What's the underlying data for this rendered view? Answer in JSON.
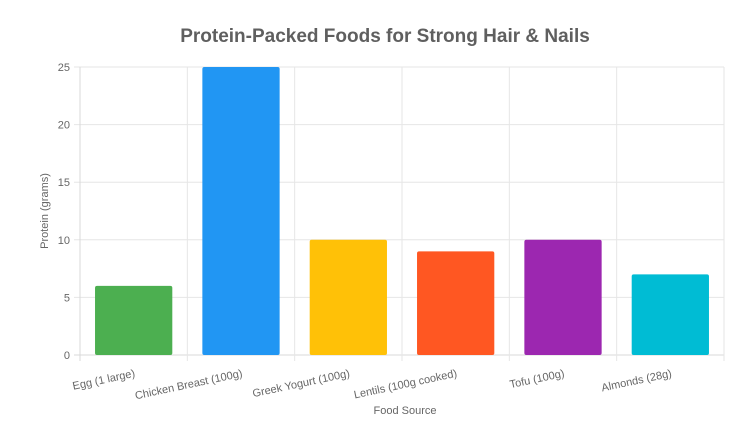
{
  "chart_data": {
    "type": "bar",
    "title": "Protein-Packed Foods for Strong Hair & Nails",
    "xlabel": "Food Source",
    "ylabel": "Protein (grams)",
    "ylim": [
      0,
      25
    ],
    "yticks": [
      0,
      5,
      10,
      15,
      20,
      25
    ],
    "grid": true,
    "legend": "none",
    "categories": [
      "Egg (1 large)",
      "Chicken Breast (100g)",
      "Greek Yogurt (100g)",
      "Lentils (100g cooked)",
      "Tofu (100g)",
      "Almonds (28g)"
    ],
    "values": [
      6,
      25,
      10,
      9,
      10,
      7
    ],
    "colors": [
      "#4caf50",
      "#2196f3",
      "#ffc107",
      "#ff5722",
      "#9c27b0",
      "#00bcd4"
    ]
  }
}
